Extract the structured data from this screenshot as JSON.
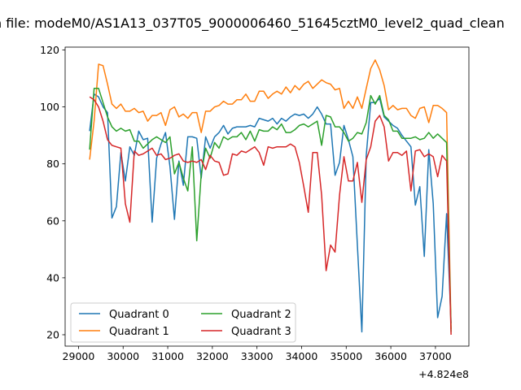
{
  "title": "n file: modeM0/AS1A13_037T05_9000006460_51645cztM0_level2_quad_clean",
  "chart_data": {
    "type": "line",
    "grid": false,
    "legend_placement": "lower-left",
    "x_offset_label": "+4.824e8",
    "xlim": [
      28700,
      37750
    ],
    "ylim": [
      16,
      121
    ],
    "x_ticks": [
      29000,
      30000,
      31000,
      32000,
      33000,
      34000,
      35000,
      36000,
      37000
    ],
    "x_tick_labels": [
      "29000",
      "30000",
      "31000",
      "32000",
      "33000",
      "34000",
      "35000",
      "36000",
      "37000"
    ],
    "y_ticks": [
      20,
      40,
      60,
      80,
      100,
      120
    ],
    "y_tick_labels": [
      "20",
      "40",
      "60",
      "80",
      "100",
      "120"
    ],
    "x": [
      29250,
      29350,
      29450,
      29550,
      29650,
      29750,
      29850,
      29950,
      30050,
      30150,
      30250,
      30350,
      30450,
      30550,
      30650,
      30750,
      30850,
      30950,
      31050,
      31150,
      31250,
      31350,
      31450,
      31550,
      31650,
      31750,
      31850,
      31950,
      32050,
      32150,
      32250,
      32350,
      32450,
      32550,
      32650,
      32750,
      32850,
      32950,
      33050,
      33150,
      33250,
      33350,
      33450,
      33550,
      33650,
      33750,
      33850,
      33950,
      34050,
      34150,
      34250,
      34350,
      34450,
      34550,
      34650,
      34750,
      34850,
      34950,
      35050,
      35150,
      35250,
      35350,
      35450,
      35550,
      35650,
      35750,
      35850,
      35950,
      36050,
      36150,
      36250,
      36350,
      36450,
      36550,
      36650,
      36750,
      36850,
      36950,
      37050,
      37150,
      37250,
      37350
    ],
    "series": [
      {
        "name": "Quadrant 0",
        "color": "#1f77b4",
        "values": [
          91.5,
          104.5,
          103.5,
          100,
          98,
          61,
          65,
          84,
          74,
          86,
          83,
          91.5,
          88.5,
          89,
          59.5,
          82,
          87,
          91,
          79,
          60.5,
          81,
          72.5,
          89.5,
          89.5,
          89,
          75,
          89.5,
          85.5,
          89.5,
          91,
          93.5,
          90.5,
          92.5,
          93,
          93,
          93,
          93.5,
          93,
          96,
          95.5,
          95,
          96,
          94,
          96,
          95,
          96.5,
          97.5,
          97,
          97.5,
          96,
          97.5,
          100,
          97.5,
          94,
          94,
          76,
          80.5,
          93.5,
          88.5,
          82.5,
          51.5,
          21,
          83,
          101.5,
          101.5,
          103,
          96.5,
          95,
          93.5,
          92.5,
          90,
          88,
          86,
          65.5,
          72,
          47.5,
          85,
          66,
          26,
          33.5,
          62.5,
          24
        ]
      },
      {
        "name": "Quadrant 1",
        "color": "#ff7f0e",
        "values": [
          81.5,
          95,
          115,
          114.5,
          108,
          101,
          99.5,
          101,
          98.5,
          98.5,
          99.5,
          98,
          98.5,
          95,
          97,
          97,
          98,
          93.5,
          99,
          100,
          96.5,
          97.5,
          96,
          98,
          98,
          91,
          98.5,
          98.5,
          100,
          100.5,
          102,
          101,
          101,
          102.5,
          102.5,
          104.5,
          102,
          102,
          105.5,
          105.5,
          103,
          104.5,
          105.5,
          104.5,
          107,
          105,
          107.5,
          106,
          108,
          109,
          106.5,
          108,
          109.5,
          108.5,
          108,
          106,
          106.5,
          99.5,
          102,
          99.5,
          103.5,
          99.5,
          106.5,
          113.5,
          116.5,
          113,
          107.5,
          99,
          100.5,
          99,
          99.5,
          99.5,
          97,
          96,
          99.5,
          100,
          94.5,
          100.5,
          100.5,
          99.5,
          98,
          22
        ]
      },
      {
        "name": "Quadrant 2",
        "color": "#2ca02c",
        "values": [
          85,
          106.5,
          106.5,
          101.5,
          96.5,
          93,
          91.5,
          92.5,
          91.5,
          92,
          88,
          88,
          85.5,
          87,
          88.5,
          89.5,
          88.5,
          87.5,
          89.5,
          76.5,
          80.5,
          75,
          70.5,
          86,
          53,
          76.5,
          85.5,
          82,
          87.5,
          85.5,
          89.5,
          88.5,
          89.5,
          89.5,
          91,
          88.5,
          91.5,
          88,
          92,
          91.5,
          91.5,
          93,
          92,
          94,
          91,
          91,
          92,
          93.5,
          94,
          93,
          94,
          95,
          86.5,
          97,
          96.5,
          93,
          93,
          91,
          88,
          89,
          91,
          90.5,
          94.5,
          104,
          101,
          104,
          97,
          95.5,
          91.5,
          91.5,
          89,
          89,
          89,
          89.5,
          88.5,
          89,
          91,
          89,
          90.5,
          89,
          87.5,
          21
        ]
      },
      {
        "name": "Quadrant 3",
        "color": "#d62728",
        "values": [
          103.5,
          102.5,
          100,
          95,
          88.5,
          86.5,
          86,
          85.5,
          66,
          59.5,
          84.5,
          83,
          83.5,
          84.5,
          85.5,
          83,
          83.5,
          81.5,
          82,
          83,
          83.5,
          81,
          80.5,
          81,
          80.5,
          81.5,
          78,
          83,
          81,
          80.5,
          76,
          76.5,
          83.5,
          83,
          84.5,
          84,
          85,
          86,
          84,
          79.5,
          86,
          85.5,
          86,
          86,
          86,
          87,
          86,
          80.5,
          72,
          63,
          84,
          84,
          69,
          42.5,
          51.5,
          49,
          69,
          82.5,
          74,
          74,
          80.5,
          66.5,
          81.5,
          86,
          95,
          97,
          93,
          81,
          84,
          84,
          83,
          84.5,
          70.5,
          84.5,
          85,
          82.5,
          83.5,
          82.5,
          75.5,
          83,
          81,
          20
        ]
      }
    ]
  }
}
